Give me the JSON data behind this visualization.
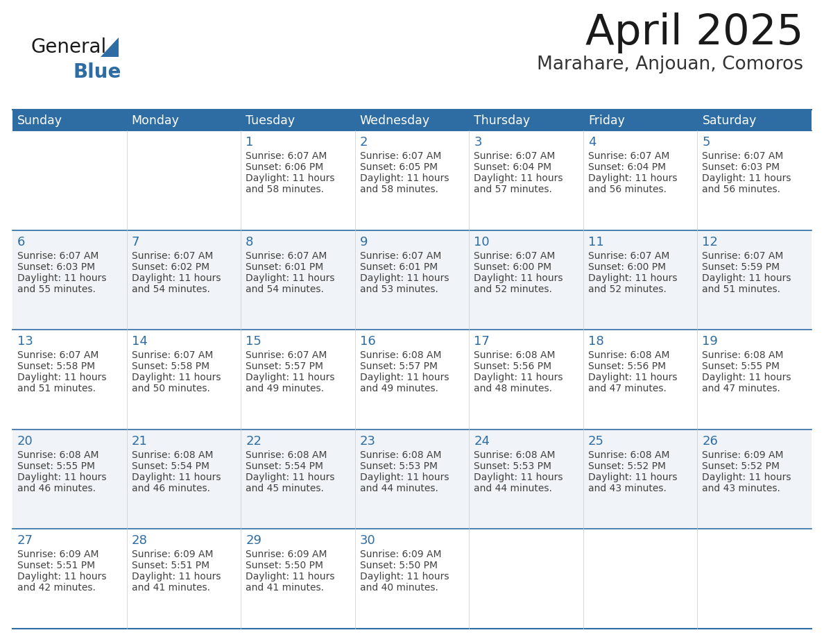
{
  "title": "April 2025",
  "subtitle": "Marahare, Anjouan, Comoros",
  "header_bg_color": "#2E6DA4",
  "header_text_color": "#FFFFFF",
  "row_bg_odd": "#F0F4F8",
  "row_bg_even": "#FFFFFF",
  "text_color": "#404040",
  "day_number_color": "#2E6DA4",
  "border_color": "#2E6DA4",
  "line_color_between_weeks": "#2E6DA4",
  "days_of_week": [
    "Sunday",
    "Monday",
    "Tuesday",
    "Wednesday",
    "Thursday",
    "Friday",
    "Saturday"
  ],
  "weeks": [
    [
      {
        "day": "",
        "sunrise": "",
        "sunset": "",
        "daylight_hours": "",
        "daylight_minutes": ""
      },
      {
        "day": "",
        "sunrise": "",
        "sunset": "",
        "daylight_hours": "",
        "daylight_minutes": ""
      },
      {
        "day": "1",
        "sunrise": "6:07 AM",
        "sunset": "6:06 PM",
        "daylight_hours": "11 hours",
        "daylight_minutes": "and 58 minutes."
      },
      {
        "day": "2",
        "sunrise": "6:07 AM",
        "sunset": "6:05 PM",
        "daylight_hours": "11 hours",
        "daylight_minutes": "and 58 minutes."
      },
      {
        "day": "3",
        "sunrise": "6:07 AM",
        "sunset": "6:04 PM",
        "daylight_hours": "11 hours",
        "daylight_minutes": "and 57 minutes."
      },
      {
        "day": "4",
        "sunrise": "6:07 AM",
        "sunset": "6:04 PM",
        "daylight_hours": "11 hours",
        "daylight_minutes": "and 56 minutes."
      },
      {
        "day": "5",
        "sunrise": "6:07 AM",
        "sunset": "6:03 PM",
        "daylight_hours": "11 hours",
        "daylight_minutes": "and 56 minutes."
      }
    ],
    [
      {
        "day": "6",
        "sunrise": "6:07 AM",
        "sunset": "6:03 PM",
        "daylight_hours": "11 hours",
        "daylight_minutes": "and 55 minutes."
      },
      {
        "day": "7",
        "sunrise": "6:07 AM",
        "sunset": "6:02 PM",
        "daylight_hours": "11 hours",
        "daylight_minutes": "and 54 minutes."
      },
      {
        "day": "8",
        "sunrise": "6:07 AM",
        "sunset": "6:01 PM",
        "daylight_hours": "11 hours",
        "daylight_minutes": "and 54 minutes."
      },
      {
        "day": "9",
        "sunrise": "6:07 AM",
        "sunset": "6:01 PM",
        "daylight_hours": "11 hours",
        "daylight_minutes": "and 53 minutes."
      },
      {
        "day": "10",
        "sunrise": "6:07 AM",
        "sunset": "6:00 PM",
        "daylight_hours": "11 hours",
        "daylight_minutes": "and 52 minutes."
      },
      {
        "day": "11",
        "sunrise": "6:07 AM",
        "sunset": "6:00 PM",
        "daylight_hours": "11 hours",
        "daylight_minutes": "and 52 minutes."
      },
      {
        "day": "12",
        "sunrise": "6:07 AM",
        "sunset": "5:59 PM",
        "daylight_hours": "11 hours",
        "daylight_minutes": "and 51 minutes."
      }
    ],
    [
      {
        "day": "13",
        "sunrise": "6:07 AM",
        "sunset": "5:58 PM",
        "daylight_hours": "11 hours",
        "daylight_minutes": "and 51 minutes."
      },
      {
        "day": "14",
        "sunrise": "6:07 AM",
        "sunset": "5:58 PM",
        "daylight_hours": "11 hours",
        "daylight_minutes": "and 50 minutes."
      },
      {
        "day": "15",
        "sunrise": "6:07 AM",
        "sunset": "5:57 PM",
        "daylight_hours": "11 hours",
        "daylight_minutes": "and 49 minutes."
      },
      {
        "day": "16",
        "sunrise": "6:08 AM",
        "sunset": "5:57 PM",
        "daylight_hours": "11 hours",
        "daylight_minutes": "and 49 minutes."
      },
      {
        "day": "17",
        "sunrise": "6:08 AM",
        "sunset": "5:56 PM",
        "daylight_hours": "11 hours",
        "daylight_minutes": "and 48 minutes."
      },
      {
        "day": "18",
        "sunrise": "6:08 AM",
        "sunset": "5:56 PM",
        "daylight_hours": "11 hours",
        "daylight_minutes": "and 47 minutes."
      },
      {
        "day": "19",
        "sunrise": "6:08 AM",
        "sunset": "5:55 PM",
        "daylight_hours": "11 hours",
        "daylight_minutes": "and 47 minutes."
      }
    ],
    [
      {
        "day": "20",
        "sunrise": "6:08 AM",
        "sunset": "5:55 PM",
        "daylight_hours": "11 hours",
        "daylight_minutes": "and 46 minutes."
      },
      {
        "day": "21",
        "sunrise": "6:08 AM",
        "sunset": "5:54 PM",
        "daylight_hours": "11 hours",
        "daylight_minutes": "and 46 minutes."
      },
      {
        "day": "22",
        "sunrise": "6:08 AM",
        "sunset": "5:54 PM",
        "daylight_hours": "11 hours",
        "daylight_minutes": "and 45 minutes."
      },
      {
        "day": "23",
        "sunrise": "6:08 AM",
        "sunset": "5:53 PM",
        "daylight_hours": "11 hours",
        "daylight_minutes": "and 44 minutes."
      },
      {
        "day": "24",
        "sunrise": "6:08 AM",
        "sunset": "5:53 PM",
        "daylight_hours": "11 hours",
        "daylight_minutes": "and 44 minutes."
      },
      {
        "day": "25",
        "sunrise": "6:08 AM",
        "sunset": "5:52 PM",
        "daylight_hours": "11 hours",
        "daylight_minutes": "and 43 minutes."
      },
      {
        "day": "26",
        "sunrise": "6:09 AM",
        "sunset": "5:52 PM",
        "daylight_hours": "11 hours",
        "daylight_minutes": "and 43 minutes."
      }
    ],
    [
      {
        "day": "27",
        "sunrise": "6:09 AM",
        "sunset": "5:51 PM",
        "daylight_hours": "11 hours",
        "daylight_minutes": "and 42 minutes."
      },
      {
        "day": "28",
        "sunrise": "6:09 AM",
        "sunset": "5:51 PM",
        "daylight_hours": "11 hours",
        "daylight_minutes": "and 41 minutes."
      },
      {
        "day": "29",
        "sunrise": "6:09 AM",
        "sunset": "5:50 PM",
        "daylight_hours": "11 hours",
        "daylight_minutes": "and 41 minutes."
      },
      {
        "day": "30",
        "sunrise": "6:09 AM",
        "sunset": "5:50 PM",
        "daylight_hours": "11 hours",
        "daylight_minutes": "and 40 minutes."
      },
      {
        "day": "",
        "sunrise": "",
        "sunset": "",
        "daylight_hours": "",
        "daylight_minutes": ""
      },
      {
        "day": "",
        "sunrise": "",
        "sunset": "",
        "daylight_hours": "",
        "daylight_minutes": ""
      },
      {
        "day": "",
        "sunrise": "",
        "sunset": "",
        "daylight_hours": "",
        "daylight_minutes": ""
      }
    ]
  ]
}
